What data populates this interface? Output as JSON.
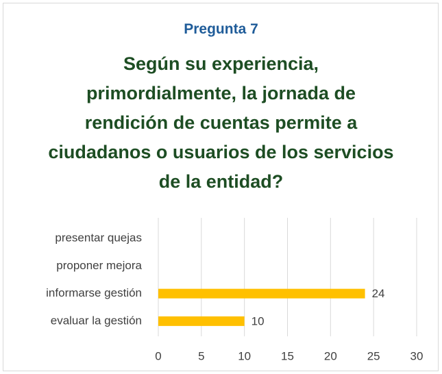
{
  "chart_data": {
    "type": "bar",
    "orientation": "horizontal",
    "subtitle": "Pregunta 7",
    "title": "Según su experiencia, primordialmente, la jornada de rendición de cuentas permite a ciudadanos o usuarios de los servicios de la entidad?",
    "categories": [
      "presentar quejas",
      "proponer mejora",
      "informarse gestión",
      "evaluar la gestión"
    ],
    "values": [
      null,
      null,
      24,
      10
    ],
    "color": "#ffc000",
    "xlim": [
      0,
      30
    ],
    "xticks": [
      0,
      5,
      10,
      15,
      20,
      25,
      30
    ],
    "grid": true
  }
}
